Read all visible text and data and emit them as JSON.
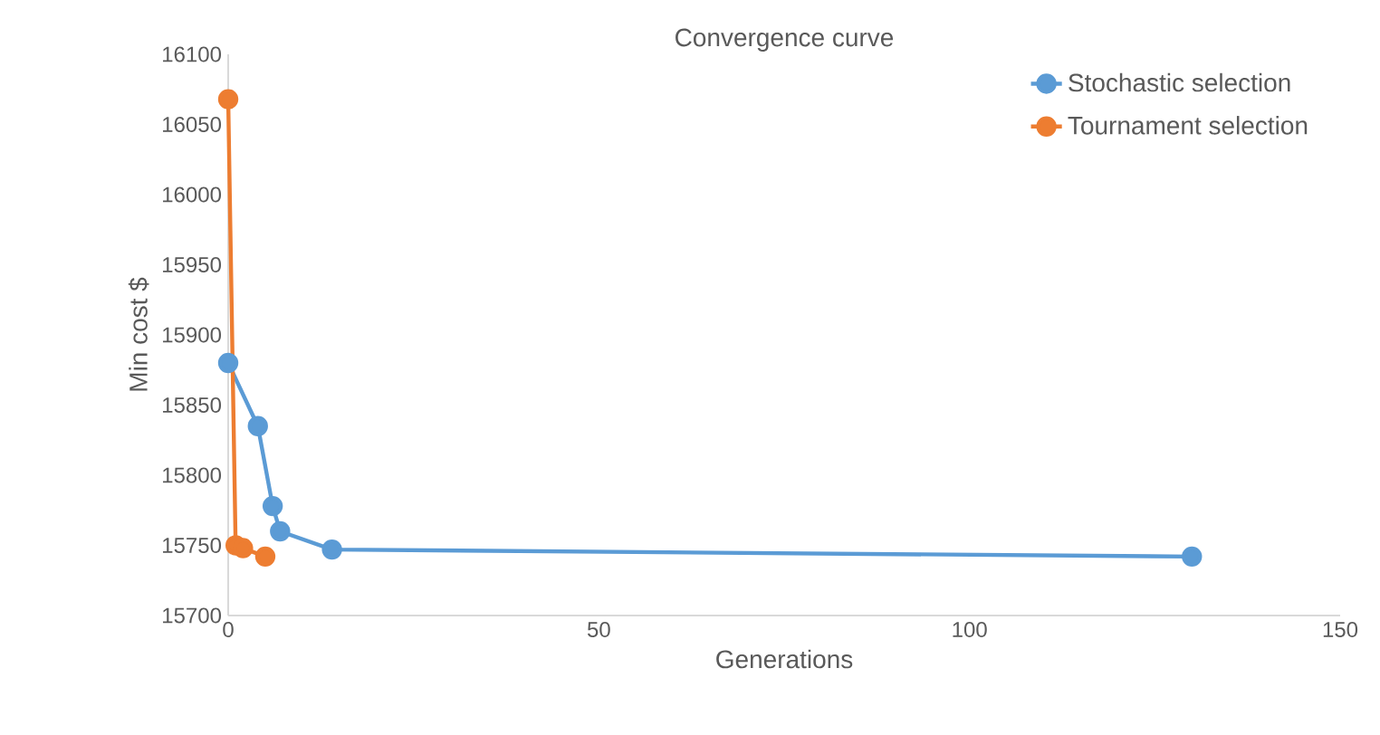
{
  "chart_data": {
    "type": "line",
    "title": "Convergence curve",
    "xlabel": "Generations",
    "ylabel": "Min cost $",
    "xlim": [
      0,
      150
    ],
    "ylim": [
      15700,
      16100
    ],
    "xticks": [
      0,
      50,
      100,
      150
    ],
    "yticks": [
      15700,
      15750,
      15800,
      15850,
      15900,
      15950,
      16000,
      16050,
      16100
    ],
    "marker": "circle",
    "grid": false,
    "legend": "top right",
    "series": [
      {
        "name": "Stochastic selection",
        "color": "#5b9bd5",
        "x": [
          0,
          4,
          6,
          7,
          14,
          130
        ],
        "values": [
          15880,
          15835,
          15778,
          15760,
          15747,
          15742
        ]
      },
      {
        "name": "Tournament selection",
        "color": "#ed7d31",
        "x": [
          0,
          1,
          2,
          5
        ],
        "values": [
          16068,
          15750,
          15748,
          15742
        ]
      }
    ]
  }
}
